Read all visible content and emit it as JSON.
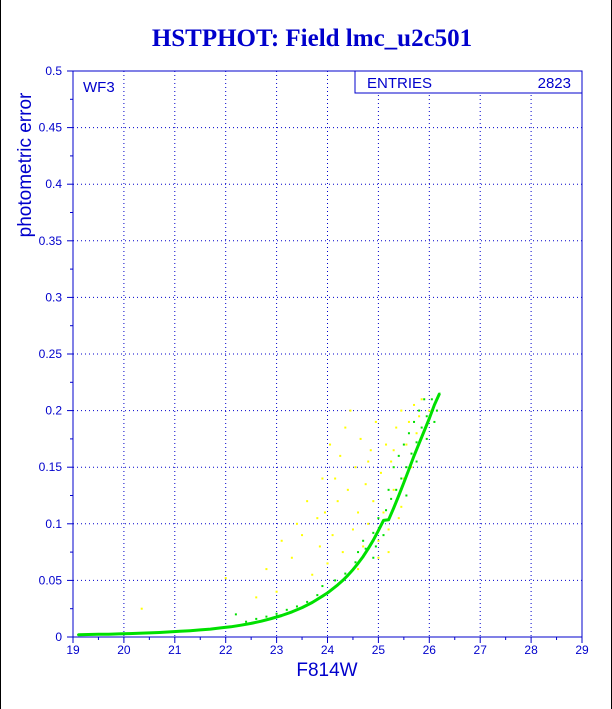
{
  "chart_data": {
    "type": "scatter",
    "title": "HSTPHOT: Field lmc_u2c501",
    "xlabel": "F814W",
    "ylabel": "photometric error",
    "xlim": [
      19,
      29
    ],
    "ylim": [
      0,
      0.5
    ],
    "x_ticks": [
      "19",
      "20",
      "21",
      "22",
      "23",
      "24",
      "25",
      "26",
      "27",
      "28",
      "29"
    ],
    "y_ticks": [
      "0",
      "0.05",
      "0.1",
      "0.15",
      "0.2",
      "0.25",
      "0.3",
      "0.35",
      "0.4",
      "0.45",
      "0.5"
    ],
    "grid": true,
    "chip_label": "WF3",
    "stats_box": {
      "label": "ENTRIES",
      "value": "2823",
      "placement": "top-right"
    },
    "series": [
      {
        "color": "#00e000",
        "points": [
          [
            19.1,
            0.002
          ],
          [
            19.3,
            0.0022
          ],
          [
            19.5,
            0.0024
          ],
          [
            19.7,
            0.0025
          ],
          [
            19.9,
            0.0027
          ],
          [
            20.1,
            0.003
          ],
          [
            20.3,
            0.0033
          ],
          [
            20.5,
            0.0036
          ],
          [
            20.7,
            0.004
          ],
          [
            20.9,
            0.0045
          ],
          [
            21.1,
            0.005
          ],
          [
            21.3,
            0.0056
          ],
          [
            21.5,
            0.0063
          ],
          [
            21.7,
            0.007
          ],
          [
            21.9,
            0.008
          ],
          [
            22.1,
            0.009
          ],
          [
            22.3,
            0.0104
          ],
          [
            22.5,
            0.012
          ],
          [
            22.7,
            0.014
          ],
          [
            22.9,
            0.0163
          ],
          [
            23.1,
            0.019
          ],
          [
            23.3,
            0.0222
          ],
          [
            23.5,
            0.026
          ],
          [
            23.7,
            0.0305
          ],
          [
            23.9,
            0.036
          ],
          [
            24.0,
            0.039
          ],
          [
            24.1,
            0.0425
          ],
          [
            24.2,
            0.046
          ],
          [
            24.3,
            0.05
          ],
          [
            24.4,
            0.0545
          ],
          [
            24.5,
            0.0595
          ],
          [
            24.6,
            0.065
          ],
          [
            24.7,
            0.071
          ],
          [
            24.8,
            0.078
          ],
          [
            24.9,
            0.0855
          ],
          [
            25.0,
            0.094
          ],
          [
            25.1,
            0.103
          ],
          [
            25.2,
            0.1035
          ],
          [
            25.3,
            0.114
          ],
          [
            25.4,
            0.125
          ],
          [
            25.5,
            0.1365
          ],
          [
            25.6,
            0.148
          ],
          [
            25.7,
            0.16
          ],
          [
            25.8,
            0.171
          ],
          [
            25.9,
            0.182
          ],
          [
            26.0,
            0.193
          ],
          [
            26.1,
            0.205
          ],
          [
            26.2,
            0.215
          ],
          [
            22.4,
            0.0135
          ],
          [
            22.8,
            0.018
          ],
          [
            23.0,
            0.0205
          ],
          [
            23.4,
            0.027
          ],
          [
            23.6,
            0.031
          ],
          [
            23.8,
            0.037
          ],
          [
            24.15,
            0.05
          ],
          [
            24.35,
            0.056
          ],
          [
            24.55,
            0.066
          ],
          [
            24.75,
            0.078
          ],
          [
            24.9,
            0.092
          ],
          [
            25.05,
            0.098
          ],
          [
            25.15,
            0.112
          ],
          [
            25.25,
            0.122
          ],
          [
            25.35,
            0.13
          ],
          [
            25.45,
            0.14
          ],
          [
            25.55,
            0.15
          ],
          [
            25.65,
            0.162
          ],
          [
            25.75,
            0.172
          ],
          [
            25.85,
            0.185
          ],
          [
            25.95,
            0.195
          ],
          [
            26.05,
            0.21
          ],
          [
            25.4,
            0.16
          ],
          [
            25.6,
            0.18
          ],
          [
            25.8,
            0.2
          ],
          [
            25.3,
            0.15
          ],
          [
            25.5,
            0.17
          ],
          [
            25.7,
            0.19
          ],
          [
            25.9,
            0.21
          ],
          [
            25.2,
            0.13
          ],
          [
            24.9,
            0.07
          ],
          [
            24.7,
            0.085
          ],
          [
            24.95,
            0.08
          ],
          [
            25.1,
            0.09
          ],
          [
            25.0,
            0.105
          ],
          [
            22.2,
            0.02
          ],
          [
            22.6,
            0.016
          ],
          [
            23.2,
            0.024
          ],
          [
            23.9,
            0.045
          ],
          [
            24.6,
            0.075
          ],
          [
            25.55,
            0.125
          ],
          [
            25.75,
            0.155
          ],
          [
            25.95,
            0.175
          ],
          [
            26.1,
            0.19
          ],
          [
            26.15,
            0.2
          ]
        ]
      },
      {
        "color": "#ffff00",
        "points": [
          [
            20.35,
            0.025
          ],
          [
            22.0,
            0.052
          ],
          [
            22.8,
            0.06
          ],
          [
            23.1,
            0.085
          ],
          [
            23.3,
            0.07
          ],
          [
            23.5,
            0.09
          ],
          [
            23.6,
            0.12
          ],
          [
            23.7,
            0.055
          ],
          [
            23.8,
            0.105
          ],
          [
            23.9,
            0.14
          ],
          [
            24.0,
            0.065
          ],
          [
            24.1,
            0.09
          ],
          [
            24.2,
            0.12
          ],
          [
            24.25,
            0.16
          ],
          [
            24.3,
            0.075
          ],
          [
            24.4,
            0.13
          ],
          [
            24.5,
            0.095
          ],
          [
            24.55,
            0.15
          ],
          [
            24.6,
            0.11
          ],
          [
            24.65,
            0.175
          ],
          [
            24.7,
            0.08
          ],
          [
            24.75,
            0.135
          ],
          [
            24.8,
            0.1
          ],
          [
            24.85,
            0.165
          ],
          [
            24.9,
            0.12
          ],
          [
            24.95,
            0.19
          ],
          [
            25.0,
            0.085
          ],
          [
            25.05,
            0.145
          ],
          [
            25.1,
            0.11
          ],
          [
            25.15,
            0.17
          ],
          [
            25.2,
            0.095
          ],
          [
            25.25,
            0.155
          ],
          [
            25.3,
            0.13
          ],
          [
            25.35,
            0.185
          ],
          [
            25.4,
            0.105
          ],
          [
            25.45,
            0.2
          ],
          [
            25.5,
            0.14
          ],
          [
            25.55,
            0.17
          ],
          [
            25.6,
            0.19
          ],
          [
            25.65,
            0.15
          ],
          [
            25.7,
            0.205
          ],
          [
            25.75,
            0.18
          ],
          [
            25.8,
            0.195
          ],
          [
            23.4,
            0.1
          ],
          [
            24.35,
            0.185
          ],
          [
            24.45,
            0.2
          ],
          [
            24.05,
            0.17
          ],
          [
            23.95,
            0.11
          ],
          [
            24.15,
            0.14
          ],
          [
            24.6,
            0.06
          ],
          [
            25.0,
            0.07
          ],
          [
            25.2,
            0.075
          ],
          [
            25.45,
            0.115
          ],
          [
            25.85,
            0.21
          ],
          [
            26.0,
            0.2
          ],
          [
            22.6,
            0.035
          ],
          [
            23.0,
            0.04
          ],
          [
            23.85,
            0.08
          ],
          [
            24.8,
            0.155
          ],
          [
            25.3,
            0.165
          ]
        ]
      }
    ]
  }
}
